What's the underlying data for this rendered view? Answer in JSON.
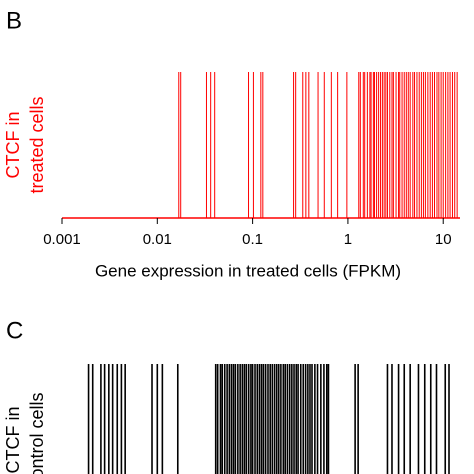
{
  "chart_data": [
    {
      "type": "rug",
      "panel": "B",
      "title": "CTCF in treated cells",
      "ylabel": [
        "CTCF in",
        "treated cells"
      ],
      "xlabel": "Gene expression in treated cells (FPKM)",
      "color": "#ff0000",
      "xscale": "log",
      "xlim": [
        0.001,
        15
      ],
      "xticks": [
        0.001,
        0.01,
        0.1,
        1,
        10
      ],
      "values": [
        0.0168,
        0.0176,
        0.0328,
        0.0363,
        0.04,
        0.0906,
        0.102,
        0.122,
        0.128,
        0.269,
        0.283,
        0.336,
        0.362,
        0.389,
        0.486,
        0.565,
        0.67,
        0.78,
        0.975,
        1.3,
        1.35,
        1.45,
        1.5,
        1.6,
        1.7,
        1.75,
        1.85,
        1.9,
        2.0,
        2.1,
        2.2,
        2.3,
        2.4,
        2.5,
        2.6,
        2.75,
        2.9,
        3.0,
        3.2,
        3.4,
        3.5,
        3.7,
        3.9,
        4.1,
        4.3,
        4.5,
        4.8,
        5.0,
        5.3,
        5.6,
        5.9,
        6.2,
        6.5,
        6.9,
        7.3,
        7.7,
        8.1,
        8.6,
        9.0,
        9.5,
        10,
        10.6,
        11.2,
        11.8,
        12.5,
        13.2,
        14
      ]
    },
    {
      "type": "rug",
      "panel": "C",
      "ylabel": [
        "CTCF in",
        "control cells"
      ],
      "color": "#000000",
      "xscale": "log",
      "xlim": [
        0.001,
        15
      ],
      "values": [
        0.0019,
        0.0021,
        0.00256,
        0.0028,
        0.0031,
        0.0034,
        0.0038,
        0.0042,
        0.0046,
        0.0088,
        0.01,
        0.0113,
        0.0164,
        0.041,
        0.043,
        0.046,
        0.048,
        0.051,
        0.054,
        0.057,
        0.06,
        0.063,
        0.066,
        0.07,
        0.074,
        0.078,
        0.082,
        0.086,
        0.091,
        0.096,
        0.1,
        0.106,
        0.112,
        0.118,
        0.124,
        0.13,
        0.137,
        0.145,
        0.153,
        0.161,
        0.17,
        0.179,
        0.188,
        0.198,
        0.21,
        0.22,
        0.232,
        0.245,
        0.258,
        0.272,
        0.287,
        0.3,
        0.32,
        0.34,
        0.36,
        0.38,
        0.4,
        0.42,
        0.45,
        0.48,
        0.52,
        0.56,
        0.6,
        0.625,
        1.19,
        1.28,
        2.6,
        2.9,
        3.4,
        3.9,
        4.5,
        5.5,
        6.4,
        7.4,
        8.5,
        10.5,
        11.5
      ]
    }
  ]
}
